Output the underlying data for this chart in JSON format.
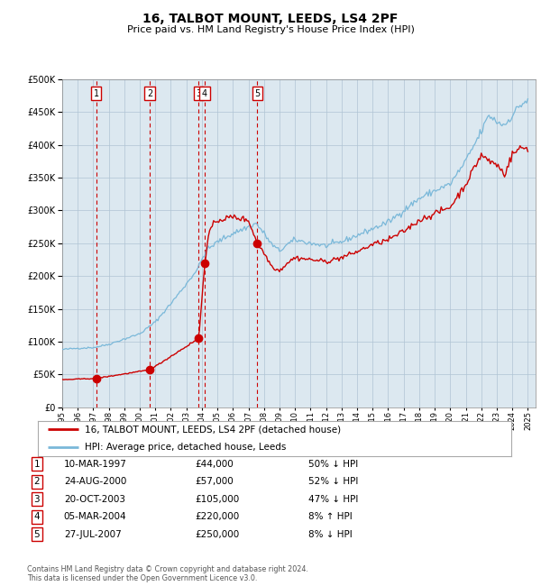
{
  "title": "16, TALBOT MOUNT, LEEDS, LS4 2PF",
  "subtitle": "Price paid vs. HM Land Registry's House Price Index (HPI)",
  "legend_line1": "16, TALBOT MOUNT, LEEDS, LS4 2PF (detached house)",
  "legend_line2": "HPI: Average price, detached house, Leeds",
  "footer1": "Contains HM Land Registry data © Crown copyright and database right 2024.",
  "footer2": "This data is licensed under the Open Government Licence v3.0.",
  "transactions": [
    {
      "num": 1,
      "date_str": "10-MAR-1997",
      "year": 1997.19,
      "price": 44000,
      "pct": "50% ↓ HPI"
    },
    {
      "num": 2,
      "date_str": "24-AUG-2000",
      "year": 2000.65,
      "price": 57000,
      "pct": "52% ↓ HPI"
    },
    {
      "num": 3,
      "date_str": "20-OCT-2003",
      "year": 2003.8,
      "price": 105000,
      "pct": "47% ↓ HPI"
    },
    {
      "num": 4,
      "date_str": "05-MAR-2004",
      "year": 2004.18,
      "price": 220000,
      "pct": "8% ↑ HPI"
    },
    {
      "num": 5,
      "date_str": "27-JUL-2007",
      "year": 2007.57,
      "price": 250000,
      "pct": "8% ↓ HPI"
    }
  ],
  "hpi_color": "#7ab8d9",
  "price_color": "#cc0000",
  "plot_bg": "#dce8f0",
  "grid_color": "#b0c4d4",
  "ylim": [
    0,
    500000
  ],
  "yticks": [
    0,
    50000,
    100000,
    150000,
    200000,
    250000,
    300000,
    350000,
    400000,
    450000,
    500000
  ],
  "xlim_start": 1995.0,
  "xlim_end": 2025.5,
  "hpi_anchors": [
    [
      1995.0,
      88000
    ],
    [
      1996.0,
      90000
    ],
    [
      1997.0,
      91000
    ],
    [
      1997.25,
      92000
    ],
    [
      1998.0,
      96000
    ],
    [
      1999.0,
      104000
    ],
    [
      2000.0,
      112000
    ],
    [
      2001.0,
      130000
    ],
    [
      2002.0,
      158000
    ],
    [
      2003.0,
      188000
    ],
    [
      2003.75,
      212000
    ],
    [
      2004.25,
      238000
    ],
    [
      2005.0,
      252000
    ],
    [
      2006.0,
      265000
    ],
    [
      2007.0,
      275000
    ],
    [
      2007.5,
      280000
    ],
    [
      2008.0,
      265000
    ],
    [
      2008.5,
      248000
    ],
    [
      2009.0,
      238000
    ],
    [
      2009.5,
      248000
    ],
    [
      2010.0,
      255000
    ],
    [
      2011.0,
      250000
    ],
    [
      2012.0,
      246000
    ],
    [
      2013.0,
      252000
    ],
    [
      2014.0,
      262000
    ],
    [
      2015.0,
      272000
    ],
    [
      2016.0,
      282000
    ],
    [
      2017.0,
      300000
    ],
    [
      2018.0,
      318000
    ],
    [
      2019.0,
      330000
    ],
    [
      2020.0,
      340000
    ],
    [
      2021.0,
      375000
    ],
    [
      2022.0,
      420000
    ],
    [
      2022.5,
      445000
    ],
    [
      2023.0,
      435000
    ],
    [
      2023.5,
      430000
    ],
    [
      2024.0,
      445000
    ],
    [
      2024.5,
      460000
    ],
    [
      2025.0,
      468000
    ]
  ],
  "price_anchors": [
    [
      1995.0,
      42000
    ],
    [
      1997.19,
      44000
    ],
    [
      2000.65,
      57000
    ],
    [
      2003.8,
      105000
    ],
    [
      2004.18,
      220000
    ],
    [
      2004.5,
      270000
    ],
    [
      2005.0,
      285000
    ],
    [
      2006.0,
      290000
    ],
    [
      2007.0,
      285000
    ],
    [
      2007.57,
      250000
    ],
    [
      2008.0,
      235000
    ],
    [
      2008.5,
      215000
    ],
    [
      2009.0,
      208000
    ],
    [
      2009.5,
      220000
    ],
    [
      2010.0,
      228000
    ],
    [
      2011.0,
      225000
    ],
    [
      2012.0,
      222000
    ],
    [
      2013.0,
      228000
    ],
    [
      2014.0,
      237000
    ],
    [
      2015.0,
      248000
    ],
    [
      2016.0,
      255000
    ],
    [
      2017.0,
      268000
    ],
    [
      2018.0,
      285000
    ],
    [
      2019.0,
      295000
    ],
    [
      2020.0,
      305000
    ],
    [
      2021.0,
      340000
    ],
    [
      2022.0,
      385000
    ],
    [
      2022.5,
      375000
    ],
    [
      2023.0,
      370000
    ],
    [
      2023.5,
      355000
    ],
    [
      2024.0,
      385000
    ],
    [
      2024.5,
      395000
    ],
    [
      2025.0,
      395000
    ]
  ]
}
